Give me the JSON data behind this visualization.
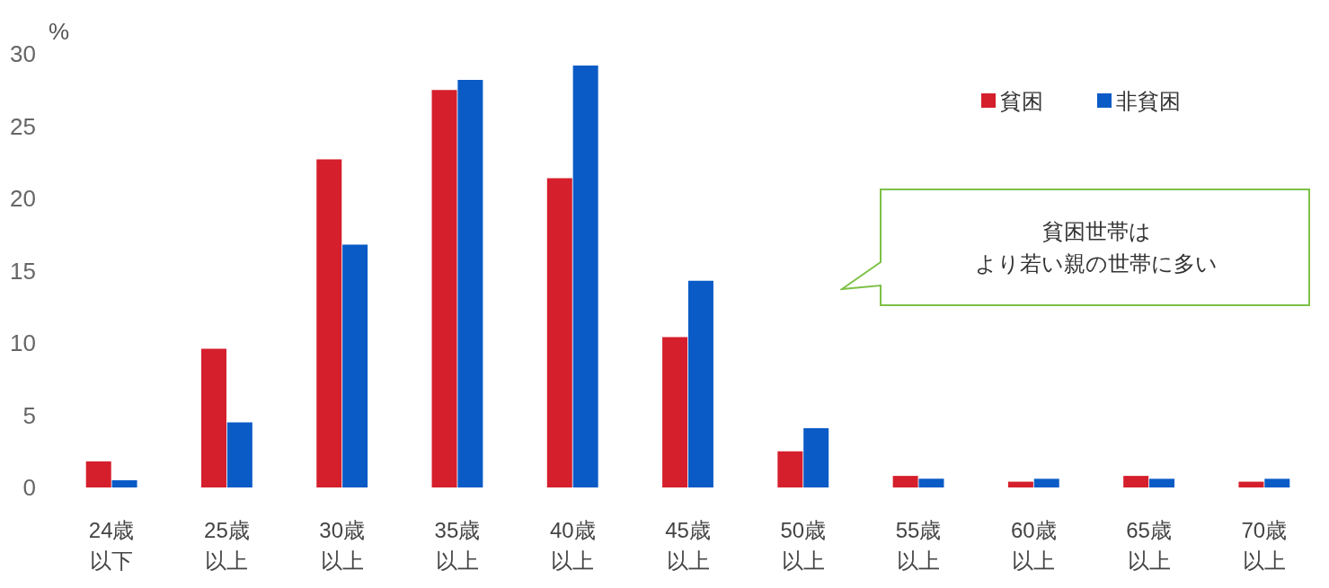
{
  "chart_data": {
    "type": "bar",
    "ylabel": "%",
    "categories": [
      "24歳以下",
      "25歳以上",
      "30歳以上",
      "35歳以上",
      "40歳以上",
      "45歳以上",
      "50歳以上",
      "55歳以上",
      "60歳以上",
      "65歳以上",
      "70歳以上"
    ],
    "series": [
      {
        "name": "貧困",
        "color": "#d51f2c",
        "values": [
          1.8,
          9.6,
          22.7,
          27.5,
          21.4,
          10.4,
          2.5,
          0.8,
          0.4,
          0.8,
          0.4
        ]
      },
      {
        "name": "非貧困",
        "color": "#0a5bc6",
        "values": [
          0.5,
          4.5,
          16.8,
          28.2,
          29.2,
          14.3,
          4.1,
          0.6,
          0.6,
          0.6,
          0.6
        ]
      }
    ],
    "ylim": [
      0,
      30
    ],
    "yticks": [
      0,
      5,
      10,
      15,
      20,
      25,
      30
    ],
    "grid": false,
    "legend": "top right",
    "annotations": [
      "貧困世帯は",
      "より若い親の世帯に多い"
    ]
  }
}
